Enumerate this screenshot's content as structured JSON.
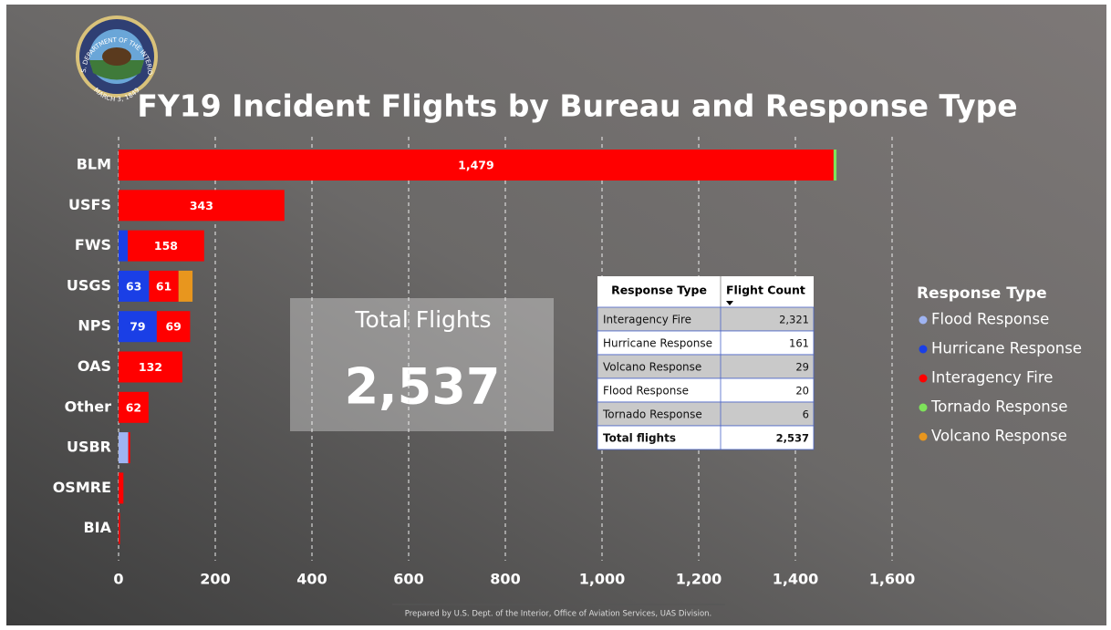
{
  "logo": {
    "text_top": "U.S. DEPARTMENT OF THE INTERIOR",
    "text_bottom": "MARCH 3, 1849"
  },
  "chart_data": {
    "type": "hbar_stacked",
    "title": "FY19 Incident Flights by Bureau and Response Type",
    "categories": [
      "BLM",
      "USFS",
      "FWS",
      "USGS",
      "NPS",
      "OAS",
      "Other",
      "USBR",
      "OSMRE",
      "BIA"
    ],
    "series": [
      {
        "name": "Flood Response",
        "color": "#9fb4f2",
        "values": [
          null,
          null,
          null,
          null,
          null,
          null,
          null,
          20,
          null,
          null
        ]
      },
      {
        "name": "Hurricane Response",
        "color": "#1a3fe6",
        "values": [
          null,
          null,
          19,
          63,
          79,
          null,
          null,
          null,
          null,
          null
        ],
        "value_labels": [
          null,
          null,
          null,
          "63",
          "79",
          null,
          null,
          null,
          null,
          null
        ]
      },
      {
        "name": "Interagency Fire",
        "color": "#ff0000",
        "values": [
          1479,
          343,
          158,
          61,
          69,
          132,
          62,
          4,
          10,
          3
        ],
        "value_labels": [
          "1,479",
          "343",
          "158",
          "61",
          "69",
          "132",
          "62",
          null,
          null,
          null
        ]
      },
      {
        "name": "Tornado Response",
        "color": "#7ee35a",
        "values": [
          6,
          null,
          null,
          null,
          null,
          null,
          null,
          null,
          null,
          null
        ]
      },
      {
        "name": "Volcano Response",
        "color": "#e8961e",
        "values": [
          null,
          null,
          null,
          29,
          null,
          null,
          null,
          null,
          null,
          null
        ]
      }
    ],
    "xlim": [
      0,
      1600
    ],
    "xticks": [
      0,
      200,
      400,
      600,
      800,
      {
        "value": 1000,
        "label": "1,000"
      },
      {
        "value": 1200,
        "label": "1,200"
      },
      {
        "value": 1400,
        "label": "1,400"
      },
      {
        "value": 1600,
        "label": "1,600"
      }
    ],
    "grid": true,
    "legend_title": "Response Type",
    "legend": "right"
  },
  "kpi": {
    "label": "Total Flights",
    "value": "2,537"
  },
  "table": {
    "header": [
      "Response Type",
      "Flight Count"
    ],
    "rows": [
      [
        "Interagency Fire",
        "2,321"
      ],
      [
        "Hurricane Response",
        "161"
      ],
      [
        "Volcano Response",
        "29"
      ],
      [
        "Flood Response",
        "20"
      ],
      [
        "Tornado Response",
        "6"
      ]
    ],
    "total": [
      "Total flights",
      "2,537"
    ]
  },
  "footer": "Prepared by U.S. Dept. of the Interior, Office of Aviation Services, UAS Division."
}
